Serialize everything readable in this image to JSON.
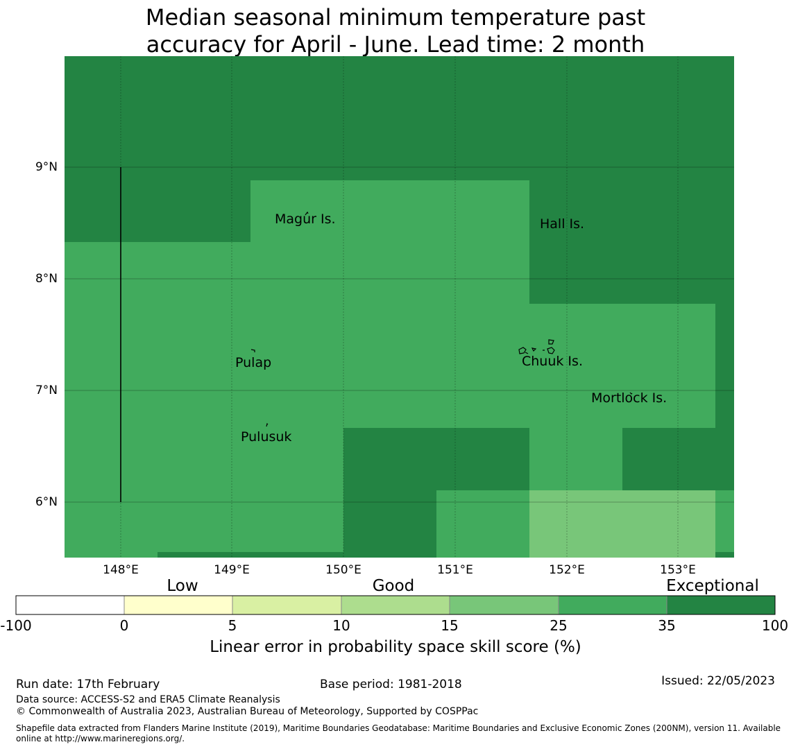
{
  "title_line1": "Median seasonal minimum temperature past",
  "title_line2": "accuracy for April - June. Lead time: 2 month",
  "map": {
    "lon_range": [
      147.5,
      153.5
    ],
    "lat_range": [
      5.5,
      10.0
    ],
    "lat_labels": [
      "9°N",
      "8°N",
      "7°N",
      "6°N"
    ],
    "lon_labels": [
      "148°E",
      "149°E",
      "150°E",
      "151°E",
      "152°E",
      "153°E"
    ],
    "places": [
      {
        "name": "Magur Is."
      },
      {
        "name": "Hall Is."
      },
      {
        "name": "Pulap"
      },
      {
        "name": "Chuuk Is."
      },
      {
        "name": "Mortlock Is."
      },
      {
        "name": "Pulusuk"
      }
    ]
  },
  "colorbar": {
    "class_labels": [
      "Low",
      "Good",
      "Exceptional"
    ],
    "ticks": [
      "-100",
      "0",
      "5",
      "10",
      "15",
      "25",
      "35",
      "100"
    ],
    "colors": [
      "#ffffff",
      "#ffffcc",
      "#d9f0a3",
      "#addd8e",
      "#78c679",
      "#41ab5d",
      "#238443"
    ],
    "label": "Linear error in probability space skill score (%)"
  },
  "footer": {
    "run_date": "Run date: 17th February",
    "base_period": "Base period: 1981-2018",
    "issued": "Issued: 22/05/2023",
    "data_source": "Data source: ACCESS-S2 and ERA5 Climate Reanalysis",
    "copyright": "© Commonwealth of Australia 2023, Australian Bureau of Meteorology, Supported by COSPPac",
    "shapefile_line1": "Shapefile data extracted from Flanders Marine Institute (2019), Maritime Boundaries Geodatabase: Maritime Boundaries and Exclusive Economic Zones (200NM), version 11. Available",
    "shapefile_line2": "online at http://www.marineregions.org/."
  }
}
